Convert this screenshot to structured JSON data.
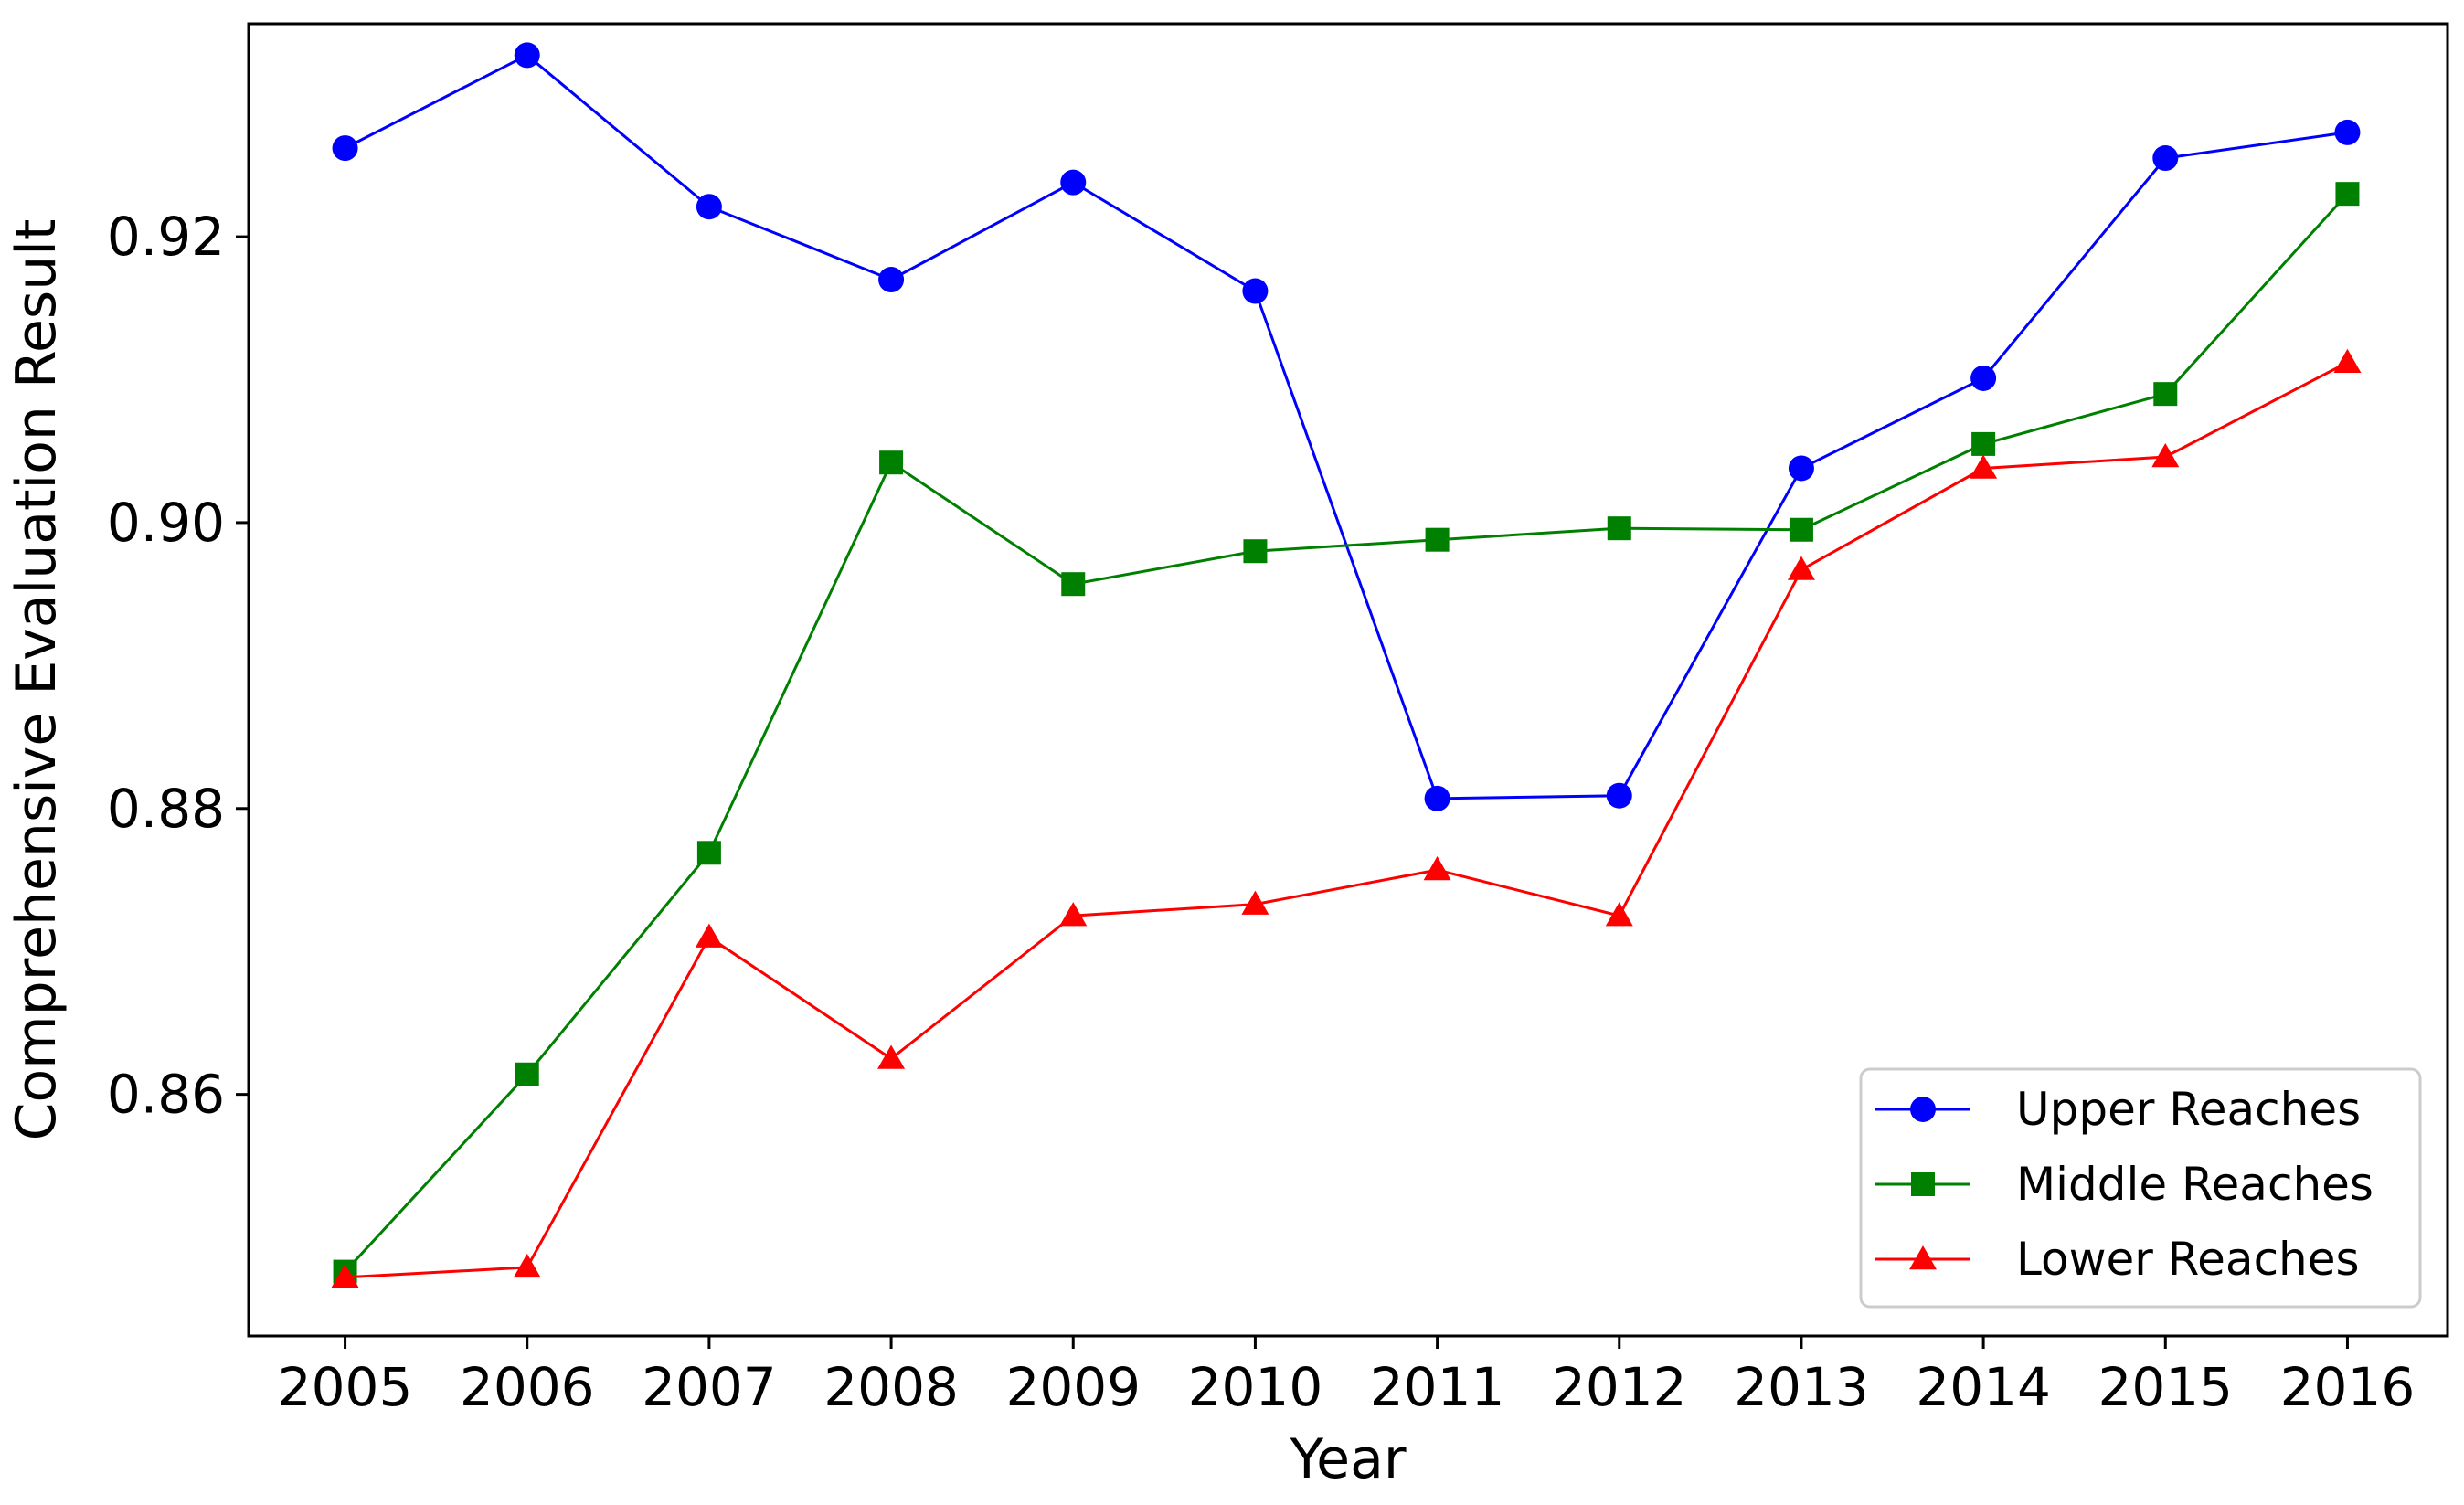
{
  "chart_data": {
    "type": "line",
    "title": "",
    "xlabel": "Year",
    "ylabel": "Comprehensive Evaluation Result",
    "x": [
      2005,
      2006,
      2007,
      2008,
      2009,
      2010,
      2011,
      2012,
      2013,
      2014,
      2015,
      2016
    ],
    "xticks": [
      "2005",
      "2006",
      "2007",
      "2008",
      "2009",
      "2010",
      "2011",
      "2012",
      "2013",
      "2014",
      "2015",
      "2016"
    ],
    "yticks": [
      "0.86",
      "0.88",
      "0.90",
      "0.92"
    ],
    "ytick_values": [
      0.86,
      0.88,
      0.9,
      0.92
    ],
    "xlim": [
      2004.47,
      2016.55
    ],
    "ylim": [
      0.8431,
      0.9349
    ],
    "grid": false,
    "legend_position": "lower-right",
    "series": [
      {
        "name": "Upper Reaches",
        "color": "#0000ff",
        "marker": "circle",
        "values": [
          0.9262,
          0.9327,
          0.9221,
          0.917,
          0.9238,
          0.9162,
          0.8807,
          0.8809,
          0.9038,
          0.9101,
          0.9255,
          0.9273
        ]
      },
      {
        "name": "Middle Reaches",
        "color": "#008000",
        "marker": "square",
        "values": [
          0.8476,
          0.8614,
          0.8769,
          0.9042,
          0.8957,
          0.898,
          0.8988,
          0.8996,
          0.8995,
          0.9055,
          0.909,
          0.923
        ]
      },
      {
        "name": "Lower Reaches",
        "color": "#ff0000",
        "marker": "triangle",
        "values": [
          0.8472,
          0.8479,
          0.871,
          0.8625,
          0.8725,
          0.8733,
          0.8757,
          0.8725,
          0.8967,
          0.9038,
          0.9046,
          0.9112
        ]
      }
    ]
  }
}
